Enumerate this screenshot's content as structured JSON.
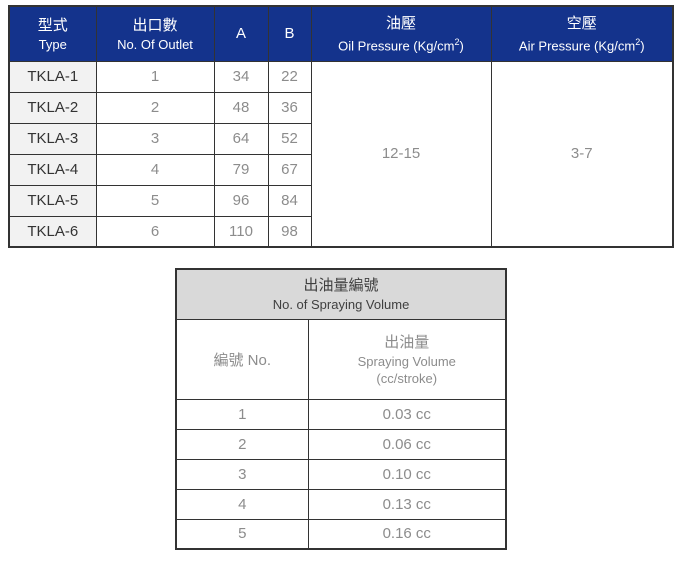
{
  "colors": {
    "header_blue": "#14338C",
    "header_text": "#FFFFFF",
    "model_cell_bg": "#F2F2F2",
    "table_title_bg": "#D9D9D9",
    "title_text": "#404040",
    "border": "#333333",
    "value_text": "#8C8C8C",
    "dark_text": "#333333"
  },
  "spec_table": {
    "col_type": {
      "zh": "型式",
      "en": "Type"
    },
    "col_outlet": {
      "zh": "出口數",
      "en": "No. Of Outlet"
    },
    "col_a": "A",
    "col_b": "B",
    "col_oil": {
      "zh": "油壓",
      "en_prefix": "Oil Pressure (Kg/cm",
      "en_sup": "2",
      "en_suffix": ")"
    },
    "col_air": {
      "zh": "空壓",
      "en_prefix": "Air Pressure (Kg/cm",
      "en_sup": "2",
      "en_suffix": ")"
    },
    "rows": [
      {
        "model": "TKLA-1",
        "outlets": "1",
        "a": "34",
        "b": "22"
      },
      {
        "model": "TKLA-2",
        "outlets": "2",
        "a": "48",
        "b": "36"
      },
      {
        "model": "TKLA-3",
        "outlets": "3",
        "a": "64",
        "b": "52"
      },
      {
        "model": "TKLA-4",
        "outlets": "4",
        "a": "79",
        "b": "67"
      },
      {
        "model": "TKLA-5",
        "outlets": "5",
        "a": "96",
        "b": "84"
      },
      {
        "model": "TKLA-6",
        "outlets": "6",
        "a": "110",
        "b": "98"
      }
    ],
    "oil_pressure_value": "12-15",
    "air_pressure_value": "3-7"
  },
  "volume_table": {
    "title": {
      "zh": "出油量編號",
      "en": "No. of Spraying Volume"
    },
    "col_no_label": "編號 No.",
    "col_volume": {
      "zh": "出油量",
      "en": "Spraying Volume",
      "unit": "(cc/stroke)"
    },
    "rows": [
      {
        "no": "1",
        "volume": "0.03 cc"
      },
      {
        "no": "2",
        "volume": "0.06 cc"
      },
      {
        "no": "3",
        "volume": "0.10 cc"
      },
      {
        "no": "4",
        "volume": "0.13 cc"
      },
      {
        "no": "5",
        "volume": "0.16 cc"
      }
    ]
  }
}
